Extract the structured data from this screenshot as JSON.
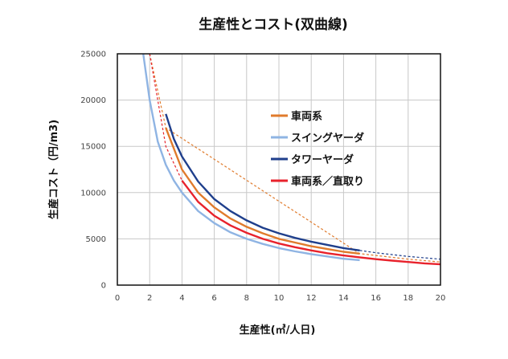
{
  "chart_data": {
    "type": "line",
    "title": "生産性とコスト(双曲線)",
    "xlabel": "生産性(㎥/人日)",
    "ylabel": "生産コスト（円/m3)",
    "xlim": [
      0,
      20
    ],
    "ylim": [
      0,
      25000
    ],
    "x_ticks": [
      "0",
      "2",
      "4",
      "6",
      "8",
      "10",
      "12",
      "14",
      "16",
      "18",
      "20"
    ],
    "y_ticks": [
      "0",
      "5000",
      "10000",
      "15000",
      "20000",
      "25000"
    ],
    "grid": true,
    "legend_position": "upper-right",
    "series": [
      {
        "name": "車両系",
        "color": "#e07b2c",
        "x": [
          3,
          4,
          5,
          6,
          7,
          8,
          9,
          10,
          11,
          12,
          13,
          14,
          15
        ],
        "y": [
          17000,
          12500,
          10000,
          8400,
          7200,
          6300,
          5600,
          5000,
          4600,
          4200,
          3900,
          3600,
          3400
        ],
        "extension": {
          "x": [
            2,
            3,
            15,
            16,
            17,
            18,
            19,
            20
          ],
          "y": [
            25000,
            17000,
            3400,
            3200,
            3000,
            2800,
            2650,
            2500
          ]
        }
      },
      {
        "name": "スイングヤーダ",
        "color": "#8fb4e3",
        "x": [
          1.6,
          2,
          2.5,
          3,
          3.5,
          4,
          5,
          6,
          7,
          8,
          9,
          10,
          11,
          12,
          13,
          14,
          15
        ],
        "y": [
          25000,
          20000,
          15500,
          13000,
          11300,
          10000,
          8000,
          6700,
          5700,
          5000,
          4450,
          4000,
          3650,
          3350,
          3100,
          2850,
          2700
        ]
      },
      {
        "name": "タワーヤーダ",
        "color": "#1f3f8c",
        "x": [
          3,
          3.5,
          4,
          5,
          6,
          7,
          8,
          9,
          10,
          11,
          12,
          13,
          14,
          15
        ],
        "y": [
          18500,
          15800,
          13900,
          11200,
          9300,
          8000,
          7000,
          6200,
          5600,
          5100,
          4700,
          4350,
          4000,
          3750
        ],
        "extension": {
          "x": [
            15,
            16,
            17,
            18,
            19,
            20
          ],
          "y": [
            3750,
            3500,
            3300,
            3100,
            2950,
            2800
          ]
        }
      },
      {
        "name": "車両系／直取り",
        "color": "#e8222c",
        "x": [
          4,
          5,
          6,
          7,
          8,
          9,
          10,
          11,
          12,
          13,
          14,
          15,
          16,
          17,
          18,
          19,
          20
        ],
        "y": [
          11300,
          9000,
          7500,
          6450,
          5650,
          5000,
          4500,
          4100,
          3750,
          3450,
          3200,
          3000,
          2800,
          2650,
          2500,
          2350,
          2250
        ],
        "extension": {
          "x": [
            2,
            3,
            4
          ],
          "y": [
            25000,
            15000,
            11300
          ]
        }
      }
    ]
  }
}
